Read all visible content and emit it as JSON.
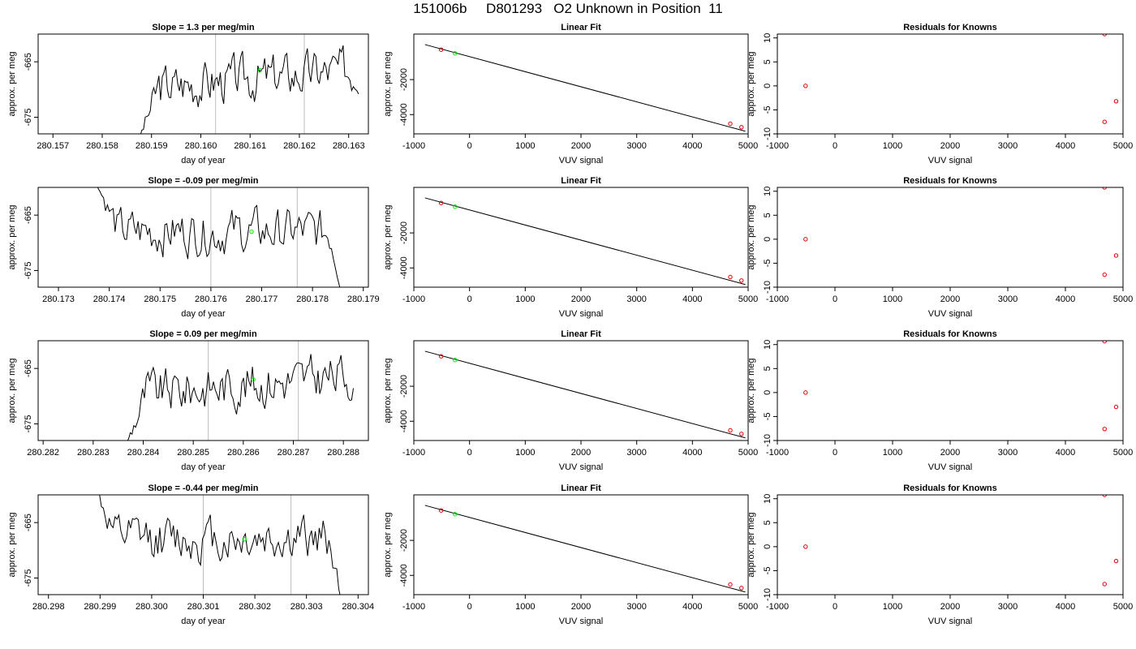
{
  "page_title": "151006b     D801293   O2 Unknown in Position  11",
  "colors": {
    "line": "#000000",
    "grid": "#bebebe",
    "unknown_marker": "#00ee00",
    "known_marker": "#dd0000"
  },
  "chart_data": [
    {
      "type": "line",
      "row": 0,
      "panel": "timeseries",
      "title": "Slope =  1.3  per meg/min",
      "xlabel": "day of year",
      "ylabel": "approx. per meg",
      "xlim": [
        280.1567,
        280.1634
      ],
      "ylim": [
        -678,
        -660
      ],
      "xticks": [
        280.157,
        280.158,
        280.159,
        280.16,
        280.161,
        280.162,
        280.163
      ],
      "xtick_labels": [
        "280.157",
        "280.158",
        "280.159",
        "280.160",
        "280.161",
        "280.162",
        "280.163"
      ],
      "yticks": [
        -665,
        -675
      ],
      "ytick_labels": [
        "-665",
        "-675"
      ],
      "vlines": [
        280.1603,
        280.1621
      ],
      "series_x_range": [
        280.1587,
        280.1632
      ],
      "series_start": -680,
      "series_base": -668,
      "series_trend": 3.5,
      "series_end": null,
      "unknown_point": {
        "x": 280.1612,
        "y": -666.5
      }
    },
    {
      "type": "scatter",
      "row": 0,
      "panel": "fit",
      "title": "Linear Fit",
      "xlabel": "VUV signal",
      "ylabel": "approx. per meg",
      "xlim": [
        -1000,
        5000
      ],
      "ylim": [
        -5100,
        600
      ],
      "xticks": [
        -1000,
        0,
        1000,
        2000,
        3000,
        4000,
        5000
      ],
      "xtick_labels": [
        "-1000",
        "0",
        "1000",
        "2000",
        "3000",
        "4000",
        "5000"
      ],
      "yticks": [
        -2000,
        -4000
      ],
      "ytick_labels": [
        "-2000",
        "-4000"
      ],
      "fit_line": {
        "x": [
          -800,
          4950
        ],
        "y": [
          0,
          -4950
        ]
      },
      "known_points": [
        {
          "x": -510,
          "y": -290
        },
        {
          "x": 4680,
          "y": -4520
        },
        {
          "x": 4880,
          "y": -4720
        }
      ],
      "unknown_points": [
        {
          "x": -260,
          "y": -500
        }
      ]
    },
    {
      "type": "scatter",
      "row": 0,
      "panel": "residuals",
      "title": "Residuals for Knowns",
      "xlabel": "VUV signal",
      "ylabel": "approx. per meg",
      "xlim": [
        -1000,
        5000
      ],
      "ylim": [
        -10,
        10.8
      ],
      "xticks": [
        -1000,
        0,
        1000,
        2000,
        3000,
        4000,
        5000
      ],
      "xtick_labels": [
        "-1000",
        "0",
        "1000",
        "2000",
        "3000",
        "4000",
        "5000"
      ],
      "yticks": [
        10,
        5,
        0,
        -5,
        -10
      ],
      "ytick_labels": [
        "10",
        "5",
        "0",
        "-5",
        "-10"
      ],
      "known_points": [
        {
          "x": -510,
          "y": 0
        },
        {
          "x": 4680,
          "y": 10.8
        },
        {
          "x": 4680,
          "y": -7.5
        },
        {
          "x": 4880,
          "y": -3.2
        }
      ]
    },
    {
      "type": "line",
      "row": 1,
      "panel": "timeseries",
      "title": "Slope =  -0.09  per meg/min",
      "xlabel": "day of year",
      "ylabel": "approx. per meg",
      "xlim": [
        280.1726,
        280.1791
      ],
      "ylim": [
        -678,
        -660
      ],
      "xticks": [
        280.173,
        280.174,
        280.175,
        280.176,
        280.177,
        280.178,
        280.179
      ],
      "xtick_labels": [
        "280.173",
        "280.174",
        "280.175",
        "280.176",
        "280.177",
        "280.178",
        "280.179"
      ],
      "yticks": [
        -665,
        -675
      ],
      "ytick_labels": [
        "-665",
        "-675"
      ],
      "vlines": [
        280.176,
        280.1777
      ],
      "series_x_range": [
        280.1737,
        280.1786
      ],
      "series_start": -658,
      "series_base": -668,
      "series_trend": 0,
      "series_end": -680,
      "unknown_point": {
        "x": 280.1768,
        "y": -668
      }
    },
    {
      "type": "scatter",
      "row": 1,
      "panel": "fit",
      "title": "Linear Fit",
      "xlabel": "VUV signal",
      "ylabel": "approx. per meg",
      "xlim": [
        -1000,
        5000
      ],
      "ylim": [
        -5100,
        600
      ],
      "xticks": [
        -1000,
        0,
        1000,
        2000,
        3000,
        4000,
        5000
      ],
      "xtick_labels": [
        "-1000",
        "0",
        "1000",
        "2000",
        "3000",
        "4000",
        "5000"
      ],
      "yticks": [
        -2000,
        -4000
      ],
      "ytick_labels": [
        "-2000",
        "-4000"
      ],
      "fit_line": {
        "x": [
          -800,
          4950
        ],
        "y": [
          0,
          -4950
        ]
      },
      "known_points": [
        {
          "x": -510,
          "y": -290
        },
        {
          "x": 4680,
          "y": -4520
        },
        {
          "x": 4880,
          "y": -4720
        }
      ],
      "unknown_points": [
        {
          "x": -260,
          "y": -500
        }
      ]
    },
    {
      "type": "scatter",
      "row": 1,
      "panel": "residuals",
      "title": "Residuals for Knowns",
      "xlabel": "VUV signal",
      "ylabel": "approx. per meg",
      "xlim": [
        -1000,
        5000
      ],
      "ylim": [
        -10,
        10.8
      ],
      "xticks": [
        -1000,
        0,
        1000,
        2000,
        3000,
        4000,
        5000
      ],
      "xtick_labels": [
        "-1000",
        "0",
        "1000",
        "2000",
        "3000",
        "4000",
        "5000"
      ],
      "yticks": [
        10,
        5,
        0,
        -5,
        -10
      ],
      "ytick_labels": [
        "10",
        "5",
        "0",
        "-5",
        "-10"
      ],
      "known_points": [
        {
          "x": -510,
          "y": 0
        },
        {
          "x": 4680,
          "y": 10.8
        },
        {
          "x": 4680,
          "y": -7.4
        },
        {
          "x": 4880,
          "y": -3.4
        }
      ]
    },
    {
      "type": "line",
      "row": 2,
      "panel": "timeseries",
      "title": "Slope =  0.09  per meg/min",
      "xlabel": "day of year",
      "ylabel": "approx. per meg",
      "xlim": [
        280.2819,
        280.2885
      ],
      "ylim": [
        -678,
        -660
      ],
      "xticks": [
        280.282,
        280.283,
        280.284,
        280.285,
        280.286,
        280.287,
        280.288
      ],
      "xtick_labels": [
        "280.282",
        "280.283",
        "280.284",
        "280.285",
        "280.286",
        "280.287",
        "280.288"
      ],
      "yticks": [
        -665,
        -675
      ],
      "ytick_labels": [
        "-665",
        "-675"
      ],
      "vlines": [
        280.2853,
        280.2871
      ],
      "series_x_range": [
        280.2836,
        280.2882
      ],
      "series_start": -680,
      "series_base": -668,
      "series_trend": 3.5,
      "series_end": null,
      "unknown_point": {
        "x": 280.2862,
        "y": -667
      }
    },
    {
      "type": "scatter",
      "row": 2,
      "panel": "fit",
      "title": "Linear Fit",
      "xlabel": "VUV signal",
      "ylabel": "approx. per meg",
      "xlim": [
        -1000,
        5000
      ],
      "ylim": [
        -5100,
        600
      ],
      "xticks": [
        -1000,
        0,
        1000,
        2000,
        3000,
        4000,
        5000
      ],
      "xtick_labels": [
        "-1000",
        "0",
        "1000",
        "2000",
        "3000",
        "4000",
        "5000"
      ],
      "yticks": [
        -2000,
        -4000
      ],
      "ytick_labels": [
        "-2000",
        "-4000"
      ],
      "fit_line": {
        "x": [
          -800,
          4950
        ],
        "y": [
          0,
          -4950
        ]
      },
      "known_points": [
        {
          "x": -510,
          "y": -290
        },
        {
          "x": 4680,
          "y": -4520
        },
        {
          "x": 4880,
          "y": -4720
        }
      ],
      "unknown_points": [
        {
          "x": -260,
          "y": -500
        }
      ]
    },
    {
      "type": "scatter",
      "row": 2,
      "panel": "residuals",
      "title": "Residuals for Knowns",
      "xlabel": "VUV signal",
      "ylabel": "approx. per meg",
      "xlim": [
        -1000,
        5000
      ],
      "ylim": [
        -10,
        10.8
      ],
      "xticks": [
        -1000,
        0,
        1000,
        2000,
        3000,
        4000,
        5000
      ],
      "xtick_labels": [
        "-1000",
        "0",
        "1000",
        "2000",
        "3000",
        "4000",
        "5000"
      ],
      "yticks": [
        10,
        5,
        0,
        -5,
        -10
      ],
      "ytick_labels": [
        "10",
        "5",
        "0",
        "-5",
        "-10"
      ],
      "known_points": [
        {
          "x": -510,
          "y": 0
        },
        {
          "x": 4680,
          "y": 10.7
        },
        {
          "x": 4680,
          "y": -7.6
        },
        {
          "x": 4880,
          "y": -3
        }
      ]
    },
    {
      "type": "line",
      "row": 3,
      "panel": "timeseries",
      "title": "Slope =  -0.44  per meg/min",
      "xlabel": "day of year",
      "ylabel": "approx. per meg",
      "xlim": [
        280.2978,
        280.3042
      ],
      "ylim": [
        -678,
        -660
      ],
      "xticks": [
        280.298,
        280.299,
        280.3,
        280.301,
        280.302,
        280.303,
        280.304
      ],
      "xtick_labels": [
        "280.298",
        "280.299",
        "280.300",
        "280.301",
        "280.302",
        "280.303",
        "280.304"
      ],
      "yticks": [
        -665,
        -675
      ],
      "ytick_labels": [
        "-665",
        "-675"
      ],
      "vlines": [
        280.301,
        280.3027
      ],
      "series_x_range": [
        280.2988,
        280.3037
      ],
      "series_start": -656,
      "series_base": -668,
      "series_trend": 0,
      "series_end": -680,
      "unknown_point": {
        "x": 280.3018,
        "y": -668
      }
    },
    {
      "type": "scatter",
      "row": 3,
      "panel": "fit",
      "title": "Linear Fit",
      "xlabel": "VUV signal",
      "ylabel": "approx. per meg",
      "xlim": [
        -1000,
        5000
      ],
      "ylim": [
        -5100,
        600
      ],
      "xticks": [
        -1000,
        0,
        1000,
        2000,
        3000,
        4000,
        5000
      ],
      "xtick_labels": [
        "-1000",
        "0",
        "1000",
        "2000",
        "3000",
        "4000",
        "5000"
      ],
      "yticks": [
        -2000,
        -4000
      ],
      "ytick_labels": [
        "-2000",
        "-4000"
      ],
      "fit_line": {
        "x": [
          -800,
          4950
        ],
        "y": [
          0,
          -4950
        ]
      },
      "known_points": [
        {
          "x": -510,
          "y": -290
        },
        {
          "x": 4680,
          "y": -4520
        },
        {
          "x": 4880,
          "y": -4720
        }
      ],
      "unknown_points": [
        {
          "x": -260,
          "y": -500
        }
      ]
    },
    {
      "type": "scatter",
      "row": 3,
      "panel": "residuals",
      "title": "Residuals for Knowns",
      "xlabel": "VUV signal",
      "ylabel": "approx. per meg",
      "xlim": [
        -1000,
        5000
      ],
      "ylim": [
        -10,
        10.8
      ],
      "xticks": [
        -1000,
        0,
        1000,
        2000,
        3000,
        4000,
        5000
      ],
      "xtick_labels": [
        "-1000",
        "0",
        "1000",
        "2000",
        "3000",
        "4000",
        "5000"
      ],
      "yticks": [
        10,
        5,
        0,
        -5,
        -10
      ],
      "ytick_labels": [
        "10",
        "5",
        "0",
        "-5",
        "-10"
      ],
      "known_points": [
        {
          "x": -510,
          "y": 0
        },
        {
          "x": 4680,
          "y": 10.8
        },
        {
          "x": 4680,
          "y": -7.8
        },
        {
          "x": 4880,
          "y": -3
        }
      ]
    }
  ]
}
